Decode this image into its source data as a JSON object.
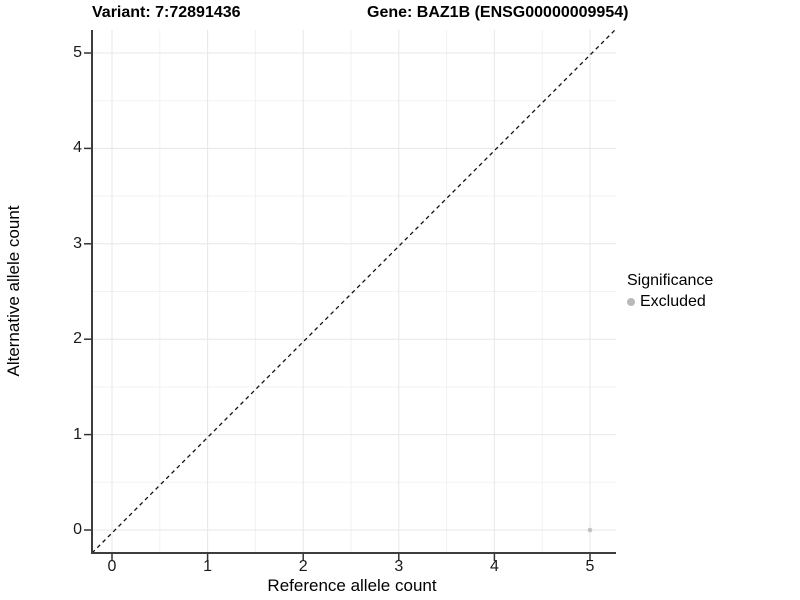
{
  "titles": {
    "variant": "Variant: 7:72891436",
    "gene": "Gene: BAZ1B (ENSG00000009954)"
  },
  "axes": {
    "x": {
      "label": "Reference allele count",
      "ticks": [
        "0",
        "1",
        "2",
        "3",
        "4",
        "5"
      ]
    },
    "y": {
      "label": "Alternative allele count",
      "ticks": [
        "0",
        "1",
        "2",
        "3",
        "4",
        "5"
      ]
    }
  },
  "legend": {
    "title": "Significance",
    "items": [
      {
        "label": "Excluded",
        "color": "#b9b9b9"
      }
    ]
  },
  "colors": {
    "excluded_point": "#c3c3c3",
    "grid_major": "#e7e7e7",
    "grid_minor": "#f2f2f2",
    "axis_line": "#3d3d3d",
    "reference_line": "#111111"
  },
  "chart_data": {
    "type": "scatter",
    "title": "Variant: 7:72891436 | Gene: BAZ1B (ENSG00000009954)",
    "xlabel": "Reference allele count",
    "ylabel": "Alternative allele count",
    "xlim": [
      -0.25,
      5.25
    ],
    "ylim": [
      -0.25,
      5.25
    ],
    "x_ticks": [
      0,
      1,
      2,
      3,
      4,
      5
    ],
    "y_ticks": [
      0,
      1,
      2,
      3,
      4,
      5
    ],
    "grid": "major every 1, minor every 0.5",
    "legend_position": "right",
    "reference_line": {
      "type": "identity y=x",
      "style": "dashed",
      "color": "#111111"
    },
    "series": [
      {
        "name": "Excluded",
        "color": "#c3c3c3",
        "marker_px": 2.3,
        "points": [
          {
            "x": 5,
            "y": 0
          }
        ]
      }
    ]
  }
}
